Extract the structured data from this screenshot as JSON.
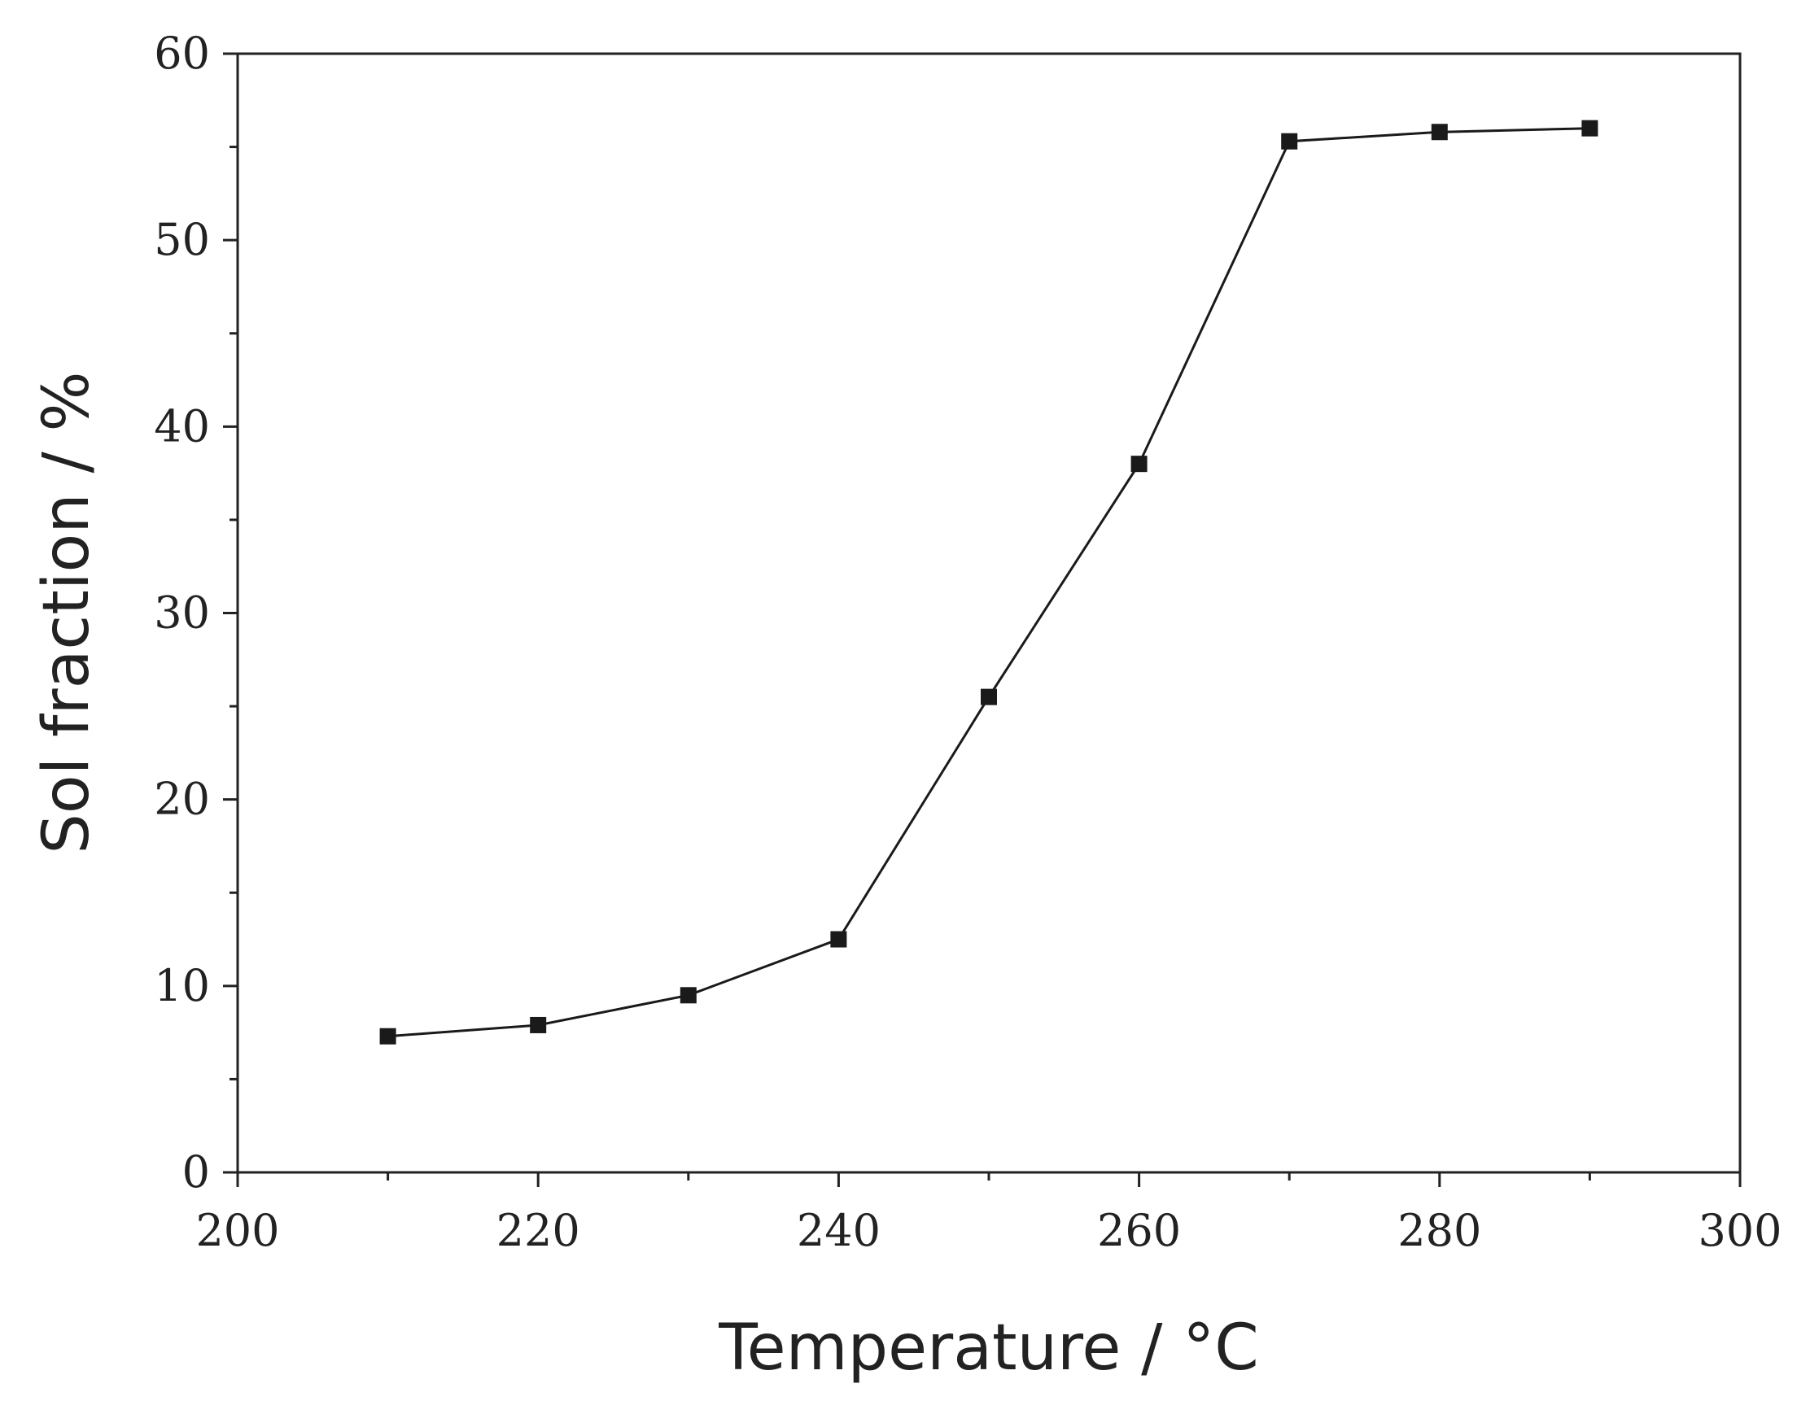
{
  "chart_data": {
    "type": "line",
    "title": "",
    "xlabel": "Temperature / °C",
    "ylabel": "Sol fraction / %",
    "xlim": [
      200,
      300
    ],
    "ylim": [
      0,
      60
    ],
    "x_ticks": [
      200,
      220,
      240,
      260,
      280,
      300
    ],
    "y_ticks": [
      0,
      10,
      20,
      30,
      40,
      50,
      60
    ],
    "grid": false,
    "legend": "none",
    "series": [
      {
        "marker": "square",
        "color": "#1a1a1a",
        "x": [
          210,
          220,
          230,
          240,
          250,
          260,
          270,
          280,
          290
        ],
        "y": [
          7.3,
          7.9,
          9.5,
          12.5,
          25.5,
          38.0,
          55.3,
          55.8,
          56.0
        ]
      }
    ]
  }
}
